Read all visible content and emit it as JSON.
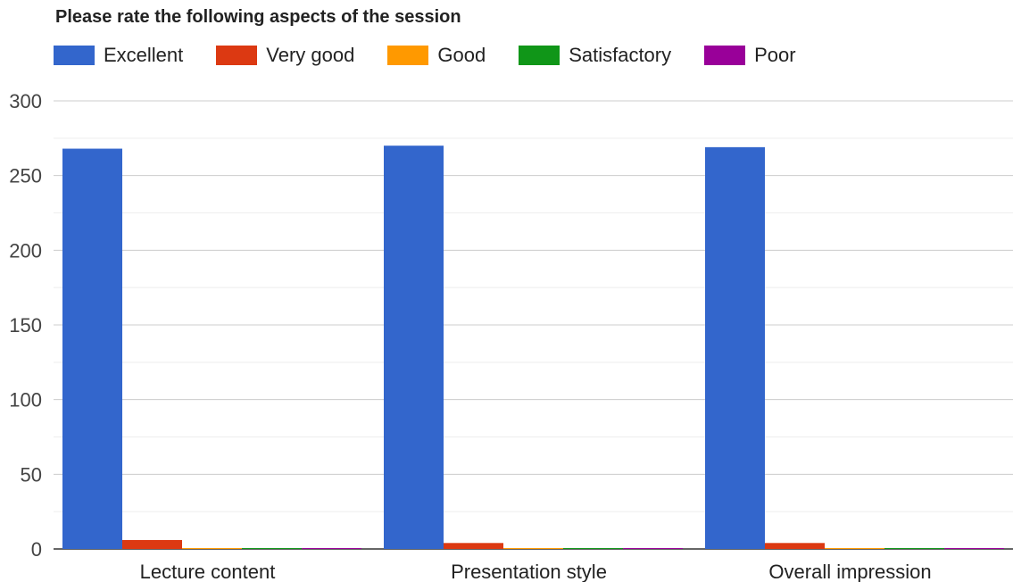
{
  "chart_data": {
    "type": "bar",
    "title": "Please rate the following aspects of the session",
    "categories": [
      "Lecture content",
      "Presentation style",
      "Overall impression"
    ],
    "series": [
      {
        "name": "Excellent",
        "color": "#3366cc",
        "values": [
          268,
          270,
          269
        ]
      },
      {
        "name": "Very good",
        "color": "#dc3912",
        "values": [
          6,
          4,
          4
        ]
      },
      {
        "name": "Good",
        "color": "#ff9900",
        "values": [
          0.6,
          0.6,
          0.6
        ]
      },
      {
        "name": "Satisfactory",
        "color": "#109618",
        "values": [
          0.6,
          0.6,
          0.6
        ]
      },
      {
        "name": "Poor",
        "color": "#990099",
        "values": [
          0.6,
          0.6,
          0.6
        ]
      }
    ],
    "yticks": [
      0,
      50,
      100,
      150,
      200,
      250,
      300
    ],
    "ylim": [
      0,
      300
    ],
    "legend_position": "top",
    "grid": true
  }
}
